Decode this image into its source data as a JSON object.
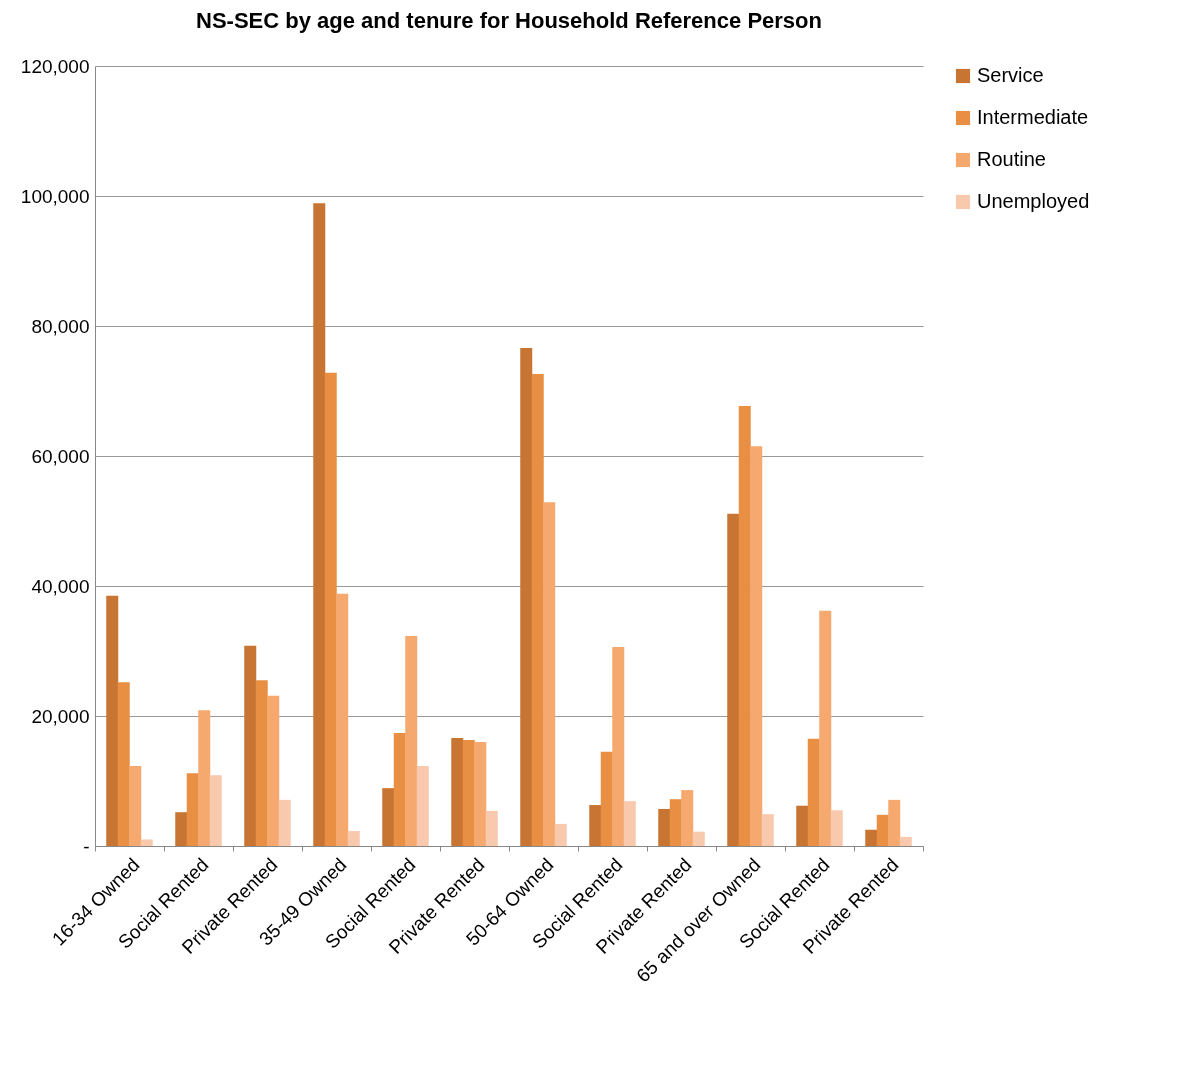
{
  "chart_data": {
    "type": "bar",
    "title": "NS-SEC by age and tenure for Household Reference Person",
    "categories": [
      "16-34 Owned",
      "Social Rented",
      "Private Rented",
      "35-49 Owned",
      "Social Rented",
      "Private Rented",
      "50-64 Owned",
      "Social Rented",
      "Private Rented",
      "65 and over Owned",
      "Social Rented",
      "Private Rented"
    ],
    "series": [
      {
        "name": "Service",
        "color": "#c87533",
        "values": [
          38500,
          5200,
          30800,
          98900,
          8900,
          16600,
          76600,
          6300,
          5700,
          51100,
          6200,
          2500
        ]
      },
      {
        "name": "Intermediate",
        "color": "#e98f44",
        "values": [
          25200,
          11200,
          25500,
          72800,
          17400,
          16300,
          72600,
          14500,
          7200,
          67700,
          16500,
          4800
        ]
      },
      {
        "name": "Routine",
        "color": "#f6a96f",
        "values": [
          12300,
          20900,
          23100,
          38800,
          32300,
          16000,
          52900,
          30600,
          8600,
          61500,
          36200,
          7100
        ]
      },
      {
        "name": "Unemployed",
        "color": "#f9c9ae",
        "values": [
          1000,
          10900,
          7100,
          2300,
          12300,
          5400,
          3400,
          6900,
          2200,
          4900,
          5500,
          1400
        ]
      }
    ],
    "ylim": [
      0,
      120000
    ],
    "yticks": [
      {
        "value": 0,
        "label": "-"
      },
      {
        "value": 20000,
        "label": "20,000"
      },
      {
        "value": 40000,
        "label": "40,000"
      },
      {
        "value": 60000,
        "label": "60,000"
      },
      {
        "value": 80000,
        "label": "80,000"
      },
      {
        "value": 100000,
        "label": "100,000"
      },
      {
        "value": 120000,
        "label": "120,000"
      }
    ],
    "grid": "y",
    "legend": "right"
  }
}
